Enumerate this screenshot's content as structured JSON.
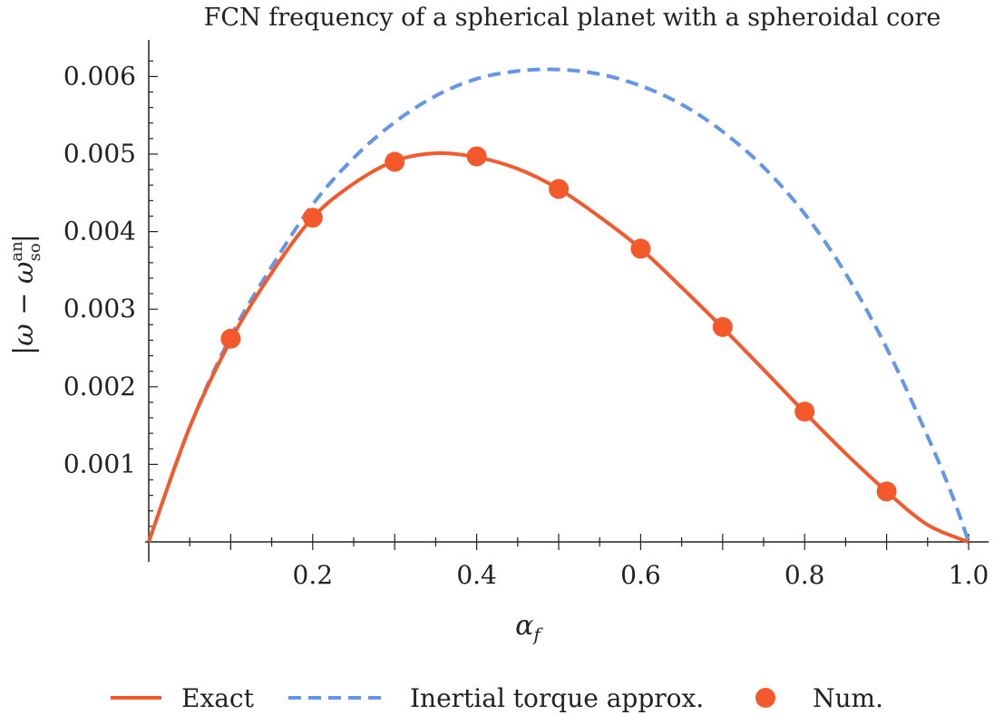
{
  "chart_data": {
    "type": "line",
    "title": "FCN frequency of a spherical planet with a spheroidal core",
    "xlabel": "α",
    "xlabel_sub": "f",
    "ylabel": "|ω − ω",
    "ylabel_sup": "an",
    "ylabel_sub": "so",
    "ylabel_end": "|",
    "xlim": [
      0,
      1.0
    ],
    "ylim": [
      0,
      0.0064
    ],
    "xticks": [
      "0.2",
      "0.4",
      "0.6",
      "0.8",
      "1.0"
    ],
    "yticks": [
      "0.001",
      "0.002",
      "0.003",
      "0.004",
      "0.005",
      "0.006"
    ],
    "grid": false,
    "legend_position": "bottom",
    "series": [
      {
        "name": "Exact",
        "style": "solid",
        "color": "#f4592b",
        "x": [
          0,
          0.05,
          0.1,
          0.15,
          0.2,
          0.25,
          0.3,
          0.35,
          0.4,
          0.45,
          0.5,
          0.55,
          0.6,
          0.65,
          0.7,
          0.75,
          0.8,
          0.85,
          0.9,
          0.95,
          1.0
        ],
        "y": [
          0,
          0.00148,
          0.0026,
          0.00347,
          0.00418,
          0.00462,
          0.00491,
          0.00501,
          0.00496,
          0.00481,
          0.00455,
          0.00419,
          0.00378,
          0.00328,
          0.00276,
          0.00222,
          0.00167,
          0.00114,
          0.00065,
          0.00022,
          0
        ]
      },
      {
        "name": "Inertial torque approx.",
        "style": "dashed",
        "color": "#6395e8",
        "x": [
          0,
          0.05,
          0.1,
          0.15,
          0.2,
          0.25,
          0.3,
          0.35,
          0.4,
          0.45,
          0.5,
          0.55,
          0.6,
          0.65,
          0.7,
          0.75,
          0.8,
          0.85,
          0.9,
          0.95,
          0.98,
          1.0
        ],
        "y": [
          0,
          0.00148,
          0.00265,
          0.00355,
          0.00435,
          0.00495,
          0.00541,
          0.00575,
          0.00597,
          0.00607,
          0.00609,
          0.00603,
          0.00588,
          0.00564,
          0.00529,
          0.00483,
          0.00423,
          0.00346,
          0.0025,
          0.00136,
          0.0006,
          0
        ]
      },
      {
        "name": "Num.",
        "style": "markers",
        "color": "#f4592b",
        "x": [
          0.1,
          0.2,
          0.3,
          0.4,
          0.5,
          0.6,
          0.7,
          0.8,
          0.9
        ],
        "y": [
          0.00262,
          0.00418,
          0.0049,
          0.00497,
          0.00455,
          0.00378,
          0.00277,
          0.00168,
          0.00065
        ]
      }
    ]
  }
}
